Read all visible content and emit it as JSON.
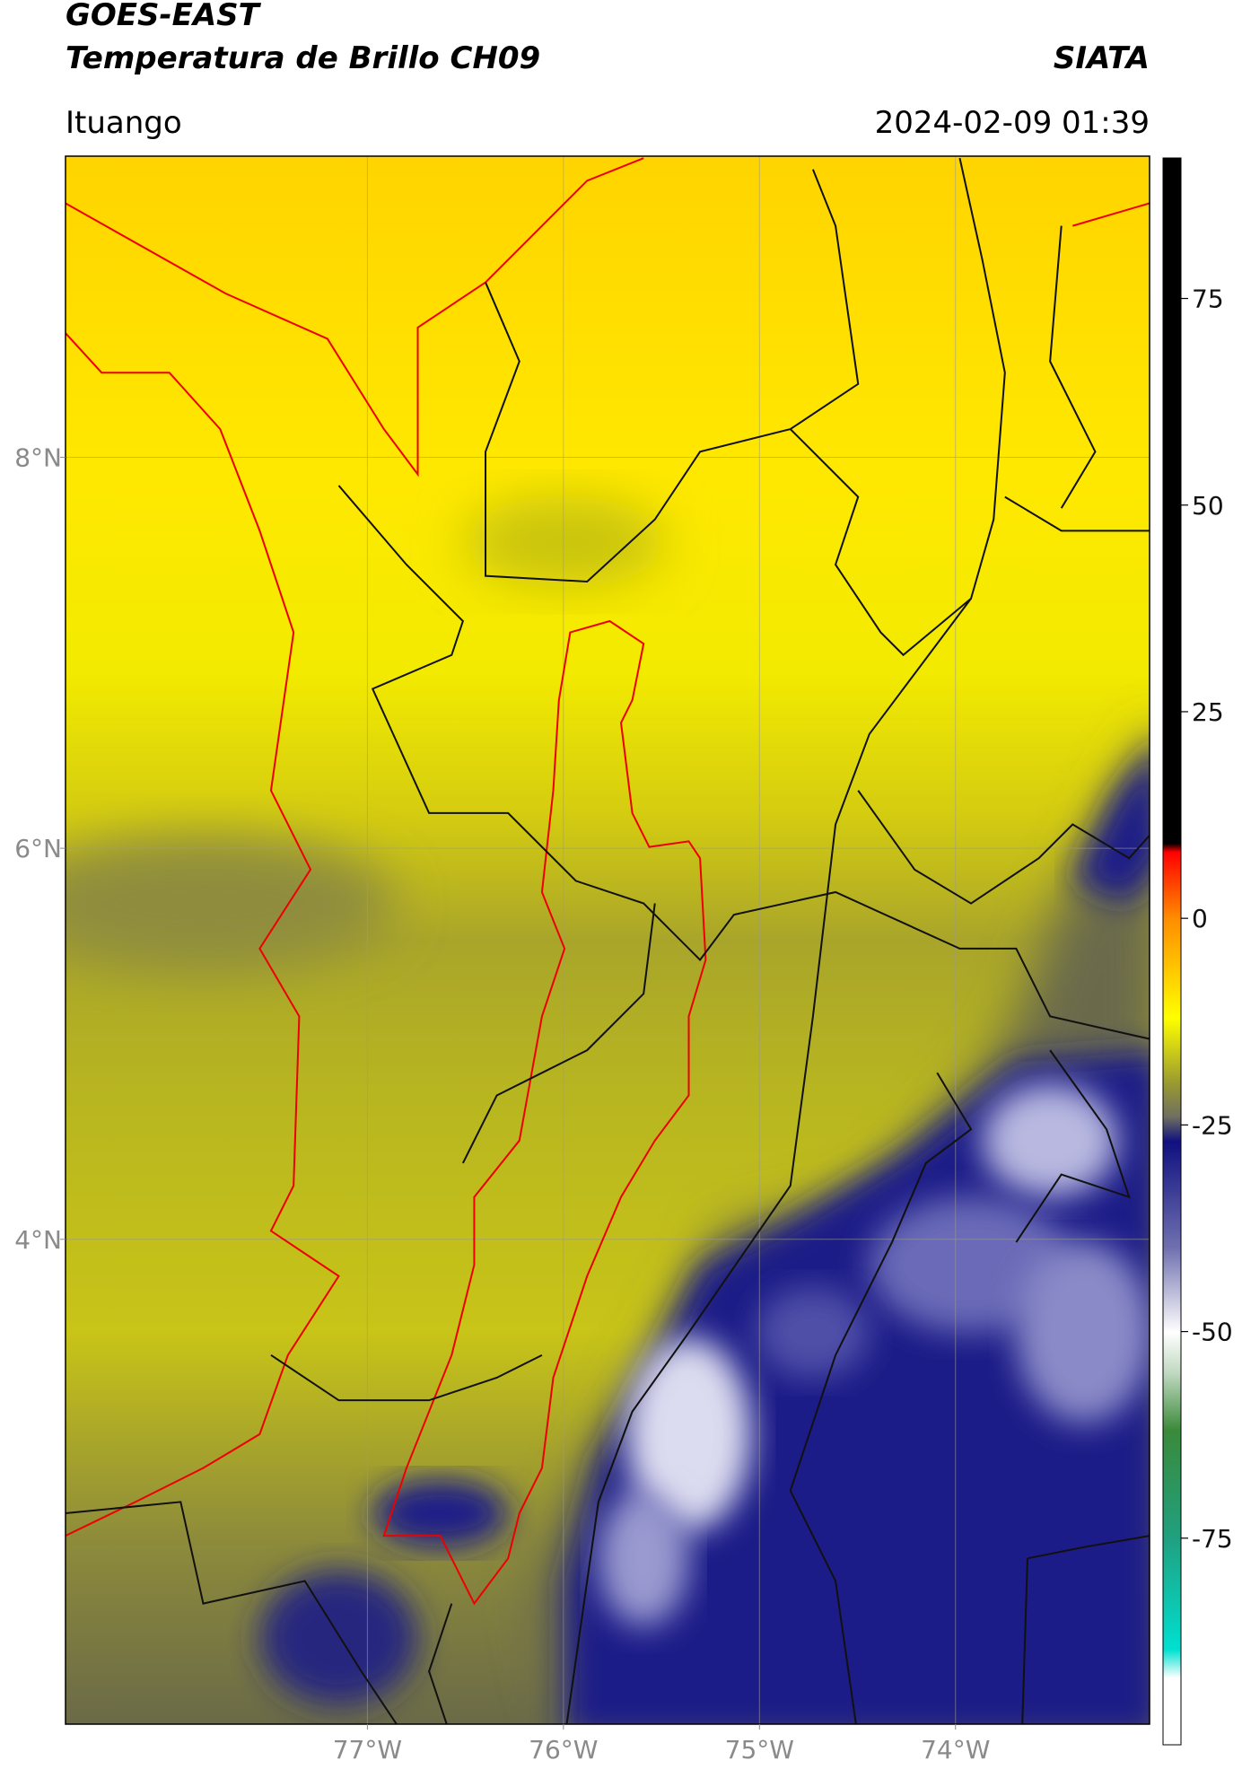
{
  "header": {
    "title_line1": "GOES-EAST",
    "title_line2": "Temperatura de Brillo CH09",
    "source": "SIATA",
    "region": "Ituango",
    "timestamp": "2024-02-09 01:39"
  },
  "chart_data": {
    "type": "map",
    "xlim": [
      -78.54,
      -73.01
    ],
    "ylim": [
      1.52,
      9.54
    ],
    "xticks": [
      {
        "value": -77,
        "label": "77°W"
      },
      {
        "value": -76,
        "label": "76°W"
      },
      {
        "value": -75,
        "label": "75°W"
      },
      {
        "value": -74,
        "label": "74°W"
      }
    ],
    "yticks": [
      {
        "value": 8,
        "label": "8°N"
      },
      {
        "value": 6,
        "label": "6°N"
      },
      {
        "value": 4,
        "label": "4°N"
      }
    ],
    "grid": true,
    "colorbar": {
      "lim": [
        -100,
        92
      ],
      "ticks": [
        75,
        50,
        25,
        0,
        -25,
        -50,
        -75
      ]
    }
  }
}
